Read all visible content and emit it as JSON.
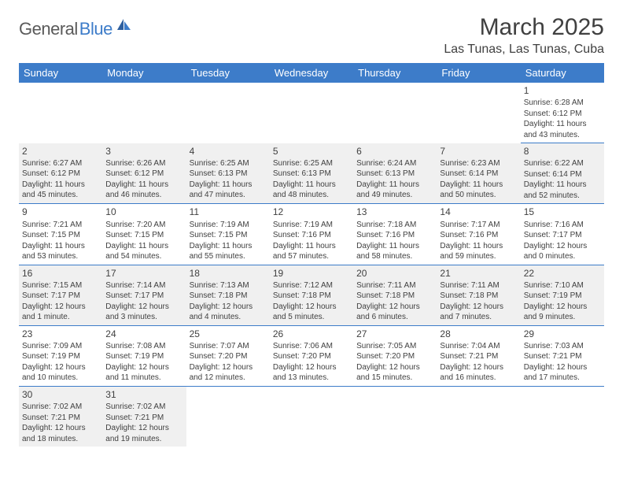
{
  "logo": {
    "text1": "General",
    "text2": "Blue"
  },
  "title": "March 2025",
  "location": "Las Tunas, Las Tunas, Cuba",
  "colors": {
    "header_bg": "#3d7cc9",
    "header_text": "#ffffff",
    "body_text": "#404040",
    "shaded_bg": "#f0f0f0",
    "rule": "#3d7cc9",
    "logo_gray": "#5a5a5a",
    "logo_blue": "#3d7cc9"
  },
  "weekdays": [
    "Sunday",
    "Monday",
    "Tuesday",
    "Wednesday",
    "Thursday",
    "Friday",
    "Saturday"
  ],
  "weeks": [
    [
      null,
      null,
      null,
      null,
      null,
      null,
      {
        "n": "1",
        "sr": "Sunrise: 6:28 AM",
        "ss": "Sunset: 6:12 PM",
        "dl": "Daylight: 11 hours and 43 minutes."
      }
    ],
    [
      {
        "n": "2",
        "sr": "Sunrise: 6:27 AM",
        "ss": "Sunset: 6:12 PM",
        "dl": "Daylight: 11 hours and 45 minutes."
      },
      {
        "n": "3",
        "sr": "Sunrise: 6:26 AM",
        "ss": "Sunset: 6:12 PM",
        "dl": "Daylight: 11 hours and 46 minutes."
      },
      {
        "n": "4",
        "sr": "Sunrise: 6:25 AM",
        "ss": "Sunset: 6:13 PM",
        "dl": "Daylight: 11 hours and 47 minutes."
      },
      {
        "n": "5",
        "sr": "Sunrise: 6:25 AM",
        "ss": "Sunset: 6:13 PM",
        "dl": "Daylight: 11 hours and 48 minutes."
      },
      {
        "n": "6",
        "sr": "Sunrise: 6:24 AM",
        "ss": "Sunset: 6:13 PM",
        "dl": "Daylight: 11 hours and 49 minutes."
      },
      {
        "n": "7",
        "sr": "Sunrise: 6:23 AM",
        "ss": "Sunset: 6:14 PM",
        "dl": "Daylight: 11 hours and 50 minutes."
      },
      {
        "n": "8",
        "sr": "Sunrise: 6:22 AM",
        "ss": "Sunset: 6:14 PM",
        "dl": "Daylight: 11 hours and 52 minutes."
      }
    ],
    [
      {
        "n": "9",
        "sr": "Sunrise: 7:21 AM",
        "ss": "Sunset: 7:15 PM",
        "dl": "Daylight: 11 hours and 53 minutes."
      },
      {
        "n": "10",
        "sr": "Sunrise: 7:20 AM",
        "ss": "Sunset: 7:15 PM",
        "dl": "Daylight: 11 hours and 54 minutes."
      },
      {
        "n": "11",
        "sr": "Sunrise: 7:19 AM",
        "ss": "Sunset: 7:15 PM",
        "dl": "Daylight: 11 hours and 55 minutes."
      },
      {
        "n": "12",
        "sr": "Sunrise: 7:19 AM",
        "ss": "Sunset: 7:16 PM",
        "dl": "Daylight: 11 hours and 57 minutes."
      },
      {
        "n": "13",
        "sr": "Sunrise: 7:18 AM",
        "ss": "Sunset: 7:16 PM",
        "dl": "Daylight: 11 hours and 58 minutes."
      },
      {
        "n": "14",
        "sr": "Sunrise: 7:17 AM",
        "ss": "Sunset: 7:16 PM",
        "dl": "Daylight: 11 hours and 59 minutes."
      },
      {
        "n": "15",
        "sr": "Sunrise: 7:16 AM",
        "ss": "Sunset: 7:17 PM",
        "dl": "Daylight: 12 hours and 0 minutes."
      }
    ],
    [
      {
        "n": "16",
        "sr": "Sunrise: 7:15 AM",
        "ss": "Sunset: 7:17 PM",
        "dl": "Daylight: 12 hours and 1 minute."
      },
      {
        "n": "17",
        "sr": "Sunrise: 7:14 AM",
        "ss": "Sunset: 7:17 PM",
        "dl": "Daylight: 12 hours and 3 minutes."
      },
      {
        "n": "18",
        "sr": "Sunrise: 7:13 AM",
        "ss": "Sunset: 7:18 PM",
        "dl": "Daylight: 12 hours and 4 minutes."
      },
      {
        "n": "19",
        "sr": "Sunrise: 7:12 AM",
        "ss": "Sunset: 7:18 PM",
        "dl": "Daylight: 12 hours and 5 minutes."
      },
      {
        "n": "20",
        "sr": "Sunrise: 7:11 AM",
        "ss": "Sunset: 7:18 PM",
        "dl": "Daylight: 12 hours and 6 minutes."
      },
      {
        "n": "21",
        "sr": "Sunrise: 7:11 AM",
        "ss": "Sunset: 7:18 PM",
        "dl": "Daylight: 12 hours and 7 minutes."
      },
      {
        "n": "22",
        "sr": "Sunrise: 7:10 AM",
        "ss": "Sunset: 7:19 PM",
        "dl": "Daylight: 12 hours and 9 minutes."
      }
    ],
    [
      {
        "n": "23",
        "sr": "Sunrise: 7:09 AM",
        "ss": "Sunset: 7:19 PM",
        "dl": "Daylight: 12 hours and 10 minutes."
      },
      {
        "n": "24",
        "sr": "Sunrise: 7:08 AM",
        "ss": "Sunset: 7:19 PM",
        "dl": "Daylight: 12 hours and 11 minutes."
      },
      {
        "n": "25",
        "sr": "Sunrise: 7:07 AM",
        "ss": "Sunset: 7:20 PM",
        "dl": "Daylight: 12 hours and 12 minutes."
      },
      {
        "n": "26",
        "sr": "Sunrise: 7:06 AM",
        "ss": "Sunset: 7:20 PM",
        "dl": "Daylight: 12 hours and 13 minutes."
      },
      {
        "n": "27",
        "sr": "Sunrise: 7:05 AM",
        "ss": "Sunset: 7:20 PM",
        "dl": "Daylight: 12 hours and 15 minutes."
      },
      {
        "n": "28",
        "sr": "Sunrise: 7:04 AM",
        "ss": "Sunset: 7:21 PM",
        "dl": "Daylight: 12 hours and 16 minutes."
      },
      {
        "n": "29",
        "sr": "Sunrise: 7:03 AM",
        "ss": "Sunset: 7:21 PM",
        "dl": "Daylight: 12 hours and 17 minutes."
      }
    ],
    [
      {
        "n": "30",
        "sr": "Sunrise: 7:02 AM",
        "ss": "Sunset: 7:21 PM",
        "dl": "Daylight: 12 hours and 18 minutes."
      },
      {
        "n": "31",
        "sr": "Sunrise: 7:02 AM",
        "ss": "Sunset: 7:21 PM",
        "dl": "Daylight: 12 hours and 19 minutes."
      },
      null,
      null,
      null,
      null,
      null
    ]
  ]
}
